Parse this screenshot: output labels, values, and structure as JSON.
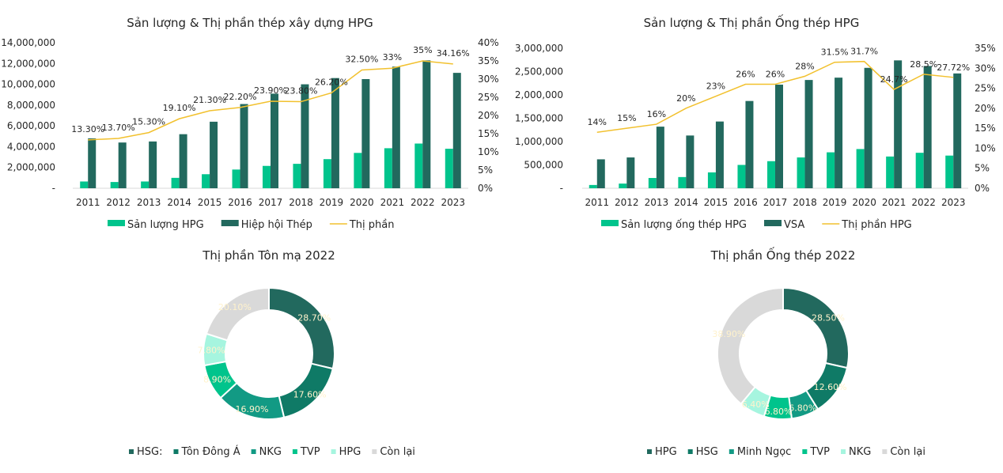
{
  "chart_data": [
    {
      "id": "construction-steel",
      "type": "bar",
      "combo": "bar+line",
      "title": "Sản lượng & Thị phần thép xây dựng HPG",
      "categories": [
        "2011",
        "2012",
        "2013",
        "2014",
        "2015",
        "2016",
        "2017",
        "2018",
        "2019",
        "2020",
        "2021",
        "2022",
        "2023"
      ],
      "series": [
        {
          "name": "Sản lượng HPG",
          "type": "bar",
          "axis": "left",
          "color": "#00C48C",
          "values": [
            650000,
            600000,
            650000,
            1000000,
            1350000,
            1800000,
            2150000,
            2350000,
            2800000,
            3400000,
            3850000,
            4300000,
            3800000
          ]
        },
        {
          "name": "Hiệp hội Thép",
          "type": "bar",
          "axis": "left",
          "color": "#22695E",
          "values": [
            4800000,
            4400000,
            4500000,
            5200000,
            6400000,
            8100000,
            9100000,
            10000000,
            10600000,
            10500000,
            11700000,
            12300000,
            11100000
          ]
        },
        {
          "name": "Thị phần",
          "type": "line",
          "axis": "right",
          "color": "#F2C12E",
          "values": [
            13.3,
            13.7,
            15.3,
            19.1,
            21.3,
            22.2,
            23.9,
            23.8,
            26.2,
            32.5,
            33,
            35,
            34.16
          ],
          "labels": [
            "13.30%",
            "13.70%",
            "15.30%",
            "19.10%",
            "21.30%",
            "22.20%",
            "23.90%",
            "23.80%",
            "26.20%",
            "32.50%",
            "33%",
            "35%",
            "34.16%"
          ]
        }
      ],
      "yleft": {
        "min": 0,
        "max": 14000000,
        "step": 2000000,
        "ticks": [
          "-",
          "2,000,000",
          "4,000,000",
          "6,000,000",
          "8,000,000",
          "10,000,000",
          "12,000,000",
          "14,000,000"
        ]
      },
      "yright": {
        "min": 0,
        "max": 40,
        "step": 5,
        "ticks": [
          "0%",
          "5%",
          "10%",
          "15%",
          "20%",
          "25%",
          "30%",
          "35%",
          "40%"
        ]
      },
      "legend": "bottom",
      "grid": false
    },
    {
      "id": "steel-pipe",
      "type": "bar",
      "combo": "bar+line",
      "title": "Sản lượng & Thị phần Ống thép HPG",
      "categories": [
        "2011",
        "2012",
        "2013",
        "2014",
        "2015",
        "2016",
        "2017",
        "2018",
        "2019",
        "2020",
        "2021",
        "2022",
        "2023"
      ],
      "series": [
        {
          "name": "Sản lượng ống thép HPG",
          "type": "bar",
          "axis": "left",
          "color": "#00C48C",
          "values": [
            70000,
            100000,
            220000,
            240000,
            340000,
            500000,
            580000,
            660000,
            770000,
            840000,
            680000,
            760000,
            700000
          ]
        },
        {
          "name": "VSA",
          "type": "bar",
          "axis": "left",
          "color": "#22695E",
          "values": [
            620000,
            660000,
            1320000,
            1130000,
            1430000,
            1870000,
            2220000,
            2320000,
            2370000,
            2580000,
            2740000,
            2620000,
            2460000
          ]
        },
        {
          "name": "Thị phần HPG",
          "type": "line",
          "axis": "right",
          "color": "#F2C12E",
          "values": [
            14,
            15,
            16,
            20,
            23,
            26,
            26,
            28,
            31.5,
            31.7,
            24.7,
            28.5,
            27.72
          ],
          "labels": [
            "14%",
            "15%",
            "16%",
            "20%",
            "23%",
            "26%",
            "26%",
            "28%",
            "31.5%",
            "31.7%",
            "24.7%",
            "28.5%",
            "27.72%"
          ]
        }
      ],
      "yleft": {
        "min": 0,
        "max": 3000000,
        "step": 500000,
        "ticks": [
          "-",
          "500,000",
          "1,000,000",
          "1,500,000",
          "2,000,000",
          "2,500,000",
          "3,000,000"
        ]
      },
      "yright": {
        "min": 0,
        "max": 35,
        "step": 5,
        "ticks": [
          "0%",
          "5%",
          "10%",
          "15%",
          "20%",
          "25%",
          "30%",
          "35%"
        ]
      },
      "legend": "bottom",
      "grid": false
    },
    {
      "id": "galvanized-share",
      "type": "pie",
      "donut": true,
      "title": "Thị phần Tôn mạ 2022",
      "slices": [
        {
          "name": "HSG:",
          "value": 28.7,
          "label": "28.70%",
          "color": "#22695E"
        },
        {
          "name": "Tôn Đông Á",
          "value": 17.6,
          "label": "17.60%",
          "color": "#0F7A66"
        },
        {
          "name": "NKG",
          "value": 16.9,
          "label": "16.90%",
          "color": "#129A84"
        },
        {
          "name": "TVP",
          "value": 8.9,
          "label": "8.90%",
          "color": "#00C48C"
        },
        {
          "name": "HPG",
          "value": 7.8,
          "label": "7.80%",
          "color": "#A6F5DF"
        },
        {
          "name": "Còn lại",
          "value": 20.1,
          "label": "20.10%",
          "color": "#D9D9D9"
        }
      ],
      "legend": "bottom"
    },
    {
      "id": "pipe-share",
      "type": "pie",
      "donut": true,
      "title": "Thị phần Ống thép 2022",
      "slices": [
        {
          "name": "HPG",
          "value": 28.5,
          "label": "28.50%",
          "color": "#22695E"
        },
        {
          "name": "HSG",
          "value": 12.6,
          "label": "12.60%",
          "color": "#0F7A66"
        },
        {
          "name": "Minh Ngọc",
          "value": 6.8,
          "label": "6.80%",
          "color": "#129A84"
        },
        {
          "name": "TVP",
          "value": 6.8,
          "label": "6.80%",
          "color": "#00C48C"
        },
        {
          "name": "NKG",
          "value": 6.4,
          "label": "6.40%",
          "color": "#A6F5DF"
        },
        {
          "name": "Còn lại",
          "value": 38.9,
          "label": "38.90%",
          "color": "#D9D9D9"
        }
      ],
      "legend": "bottom"
    }
  ]
}
